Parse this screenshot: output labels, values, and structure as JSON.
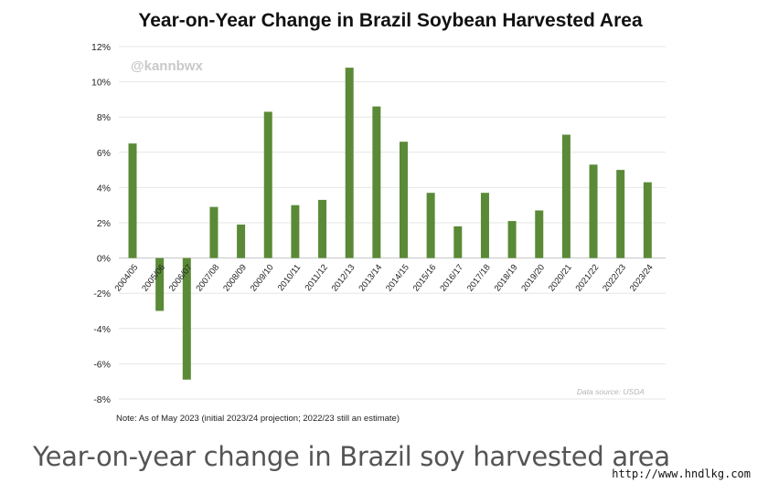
{
  "chart_data": {
    "type": "bar",
    "title": "Year-on-Year Change in Brazil Soybean Harvested Area",
    "watermark": "@kannbwx",
    "source": "Data source: USDA",
    "note": "Note: As of May 2023 (initial 2023/24 projection; 2022/23 still an estimate)",
    "bar_color": "#5a8a37",
    "categories": [
      "2004/05",
      "2005/06",
      "2006/07",
      "2007/08",
      "2008/09",
      "2009/10",
      "2010/11",
      "2011/12",
      "2012/13",
      "2013/14",
      "2014/15",
      "2015/16",
      "2016/17",
      "2017/18",
      "2018/19",
      "2019/20",
      "2020/21",
      "2021/22",
      "2022/23",
      "2023/24"
    ],
    "values": [
      6.5,
      -3.0,
      -6.9,
      2.9,
      1.9,
      8.3,
      3.0,
      3.3,
      10.8,
      8.6,
      6.6,
      3.7,
      1.8,
      3.7,
      2.1,
      2.7,
      7.0,
      5.3,
      5.0,
      4.3
    ],
    "yticks": [
      "12%",
      "10%",
      "8%",
      "6%",
      "4%",
      "2%",
      "0%",
      "-2%",
      "-4%",
      "-6%",
      "-8%"
    ],
    "ylim": [
      -8,
      12
    ],
    "grid": true
  },
  "caption": "Year-on-year change in Brazil soy harvested area",
  "site": "http://www.hndlkg.com"
}
